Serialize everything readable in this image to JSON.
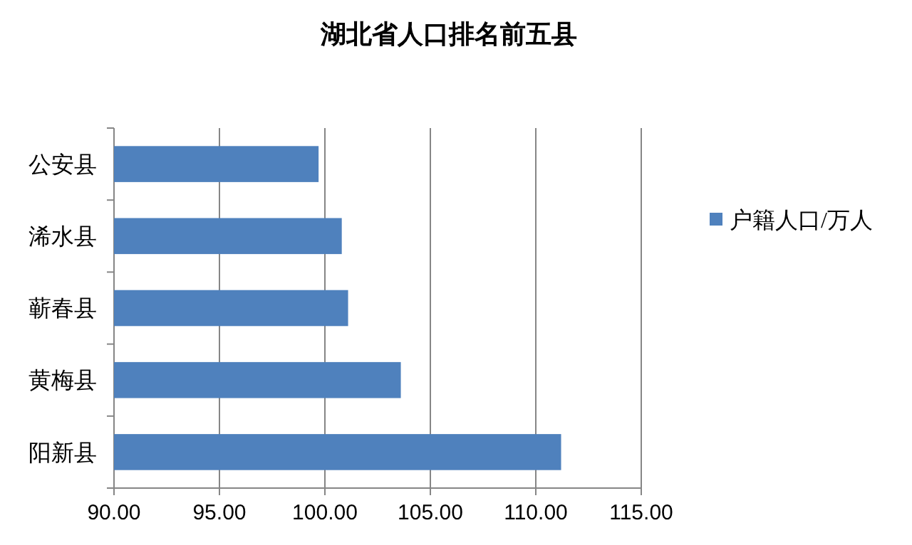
{
  "chart_data": {
    "type": "bar",
    "orientation": "horizontal",
    "title": "湖北省人口排名前五县",
    "categories": [
      "公安县",
      "浠水县",
      "蕲春县",
      "黄梅县",
      "阳新县"
    ],
    "series": [
      {
        "name": "户籍人口/万人",
        "color": "#4f81bd",
        "values": [
          99.7,
          100.8,
          101.1,
          103.6,
          111.2
        ]
      }
    ],
    "xlim": [
      90,
      115
    ],
    "xticks": [
      {
        "value": 90,
        "label": "90.00"
      },
      {
        "value": 95,
        "label": "95.00"
      },
      {
        "value": 100,
        "label": "100.00"
      },
      {
        "value": 105,
        "label": "105.00"
      },
      {
        "value": 110,
        "label": "110.00"
      },
      {
        "value": 115,
        "label": "115.00"
      }
    ],
    "grid": "x",
    "legend": "right"
  }
}
